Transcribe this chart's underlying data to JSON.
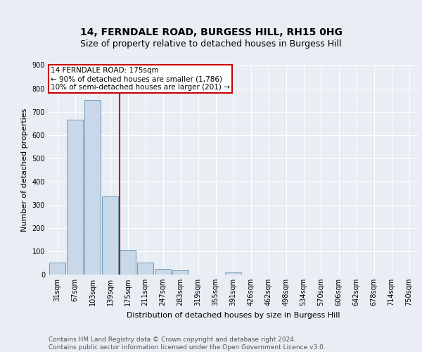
{
  "title": "14, FERNDALE ROAD, BURGESS HILL, RH15 0HG",
  "subtitle": "Size of property relative to detached houses in Burgess Hill",
  "xlabel": "Distribution of detached houses by size in Burgess Hill",
  "ylabel": "Number of detached properties",
  "bin_labels": [
    "31sqm",
    "67sqm",
    "103sqm",
    "139sqm",
    "175sqm",
    "211sqm",
    "247sqm",
    "283sqm",
    "319sqm",
    "355sqm",
    "391sqm",
    "426sqm",
    "462sqm",
    "498sqm",
    "534sqm",
    "570sqm",
    "606sqm",
    "642sqm",
    "678sqm",
    "714sqm",
    "750sqm"
  ],
  "bar_heights": [
    50,
    665,
    750,
    337,
    107,
    50,
    25,
    17,
    0,
    0,
    8,
    0,
    0,
    0,
    0,
    0,
    0,
    0,
    0,
    0,
    0
  ],
  "bar_color": "#c8d8e8",
  "bar_edge_color": "#6090b0",
  "vline_color": "#cc0000",
  "vline_x_index": 4,
  "annotation_text": "14 FERNDALE ROAD: 175sqm\n← 90% of detached houses are smaller (1,786)\n10% of semi-detached houses are larger (201) →",
  "annotation_box_color": "#cc0000",
  "ylim": [
    0,
    900
  ],
  "yticks": [
    0,
    100,
    200,
    300,
    400,
    500,
    600,
    700,
    800,
    900
  ],
  "footer_text": "Contains HM Land Registry data © Crown copyright and database right 2024.\nContains public sector information licensed under the Open Government Licence v3.0.",
  "background_color": "#e8eef4",
  "grid_color": "#ffffff",
  "title_fontsize": 10,
  "subtitle_fontsize": 9,
  "axis_fontsize": 8,
  "tick_fontsize": 7,
  "footer_fontsize": 6.5,
  "ann_fontsize": 7.5
}
